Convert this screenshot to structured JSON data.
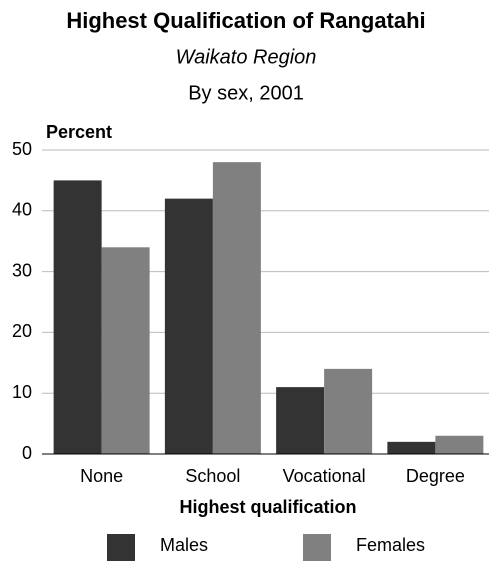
{
  "chart_data": {
    "type": "bar",
    "title": "Highest Qualification of Rangatahi",
    "subtitle": "Waikato Region",
    "caption": "By sex, 2001",
    "y_label": "Percent",
    "x_label": "Highest qualification",
    "categories": [
      "None",
      "School",
      "Vocational",
      "Degree"
    ],
    "series": [
      {
        "name": "Males",
        "color": "#333333",
        "values": [
          45,
          42,
          11,
          2
        ]
      },
      {
        "name": "Females",
        "color": "#808080",
        "values": [
          34,
          48,
          14,
          3
        ]
      }
    ],
    "ylim": [
      0,
      50
    ],
    "yticks": [
      0,
      10,
      20,
      30,
      40,
      50
    ],
    "grid": true,
    "legend": "bottom"
  }
}
